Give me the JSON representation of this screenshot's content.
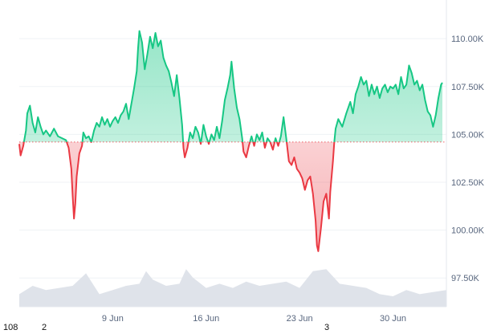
{
  "chart_data": {
    "type": "area",
    "baseline": 104.6,
    "colors": {
      "above": "#16c784",
      "below": "#ea3943",
      "volume": "#dfe3ea",
      "grid": "#eff2f5",
      "baseline": "#ea3943"
    },
    "grid": true,
    "ylim": [
      96.0,
      111.6
    ],
    "y_ticks": [
      {
        "value": 110.0,
        "label": "110.00K"
      },
      {
        "value": 107.5,
        "label": "107.50K"
      },
      {
        "value": 105.0,
        "label": "105.00K"
      },
      {
        "value": 102.5,
        "label": "102.50K"
      },
      {
        "value": 100.0,
        "label": "100.00K"
      },
      {
        "value": 97.5,
        "label": "97.50K"
      }
    ],
    "xlim": [
      2.0,
      34.0
    ],
    "x_ticks": [
      {
        "value": 9.0,
        "label": "9 Jun"
      },
      {
        "value": 16.0,
        "label": "16 Jun"
      },
      {
        "value": 23.0,
        "label": "23 Jun"
      },
      {
        "value": 30.0,
        "label": "30 Jun"
      }
    ],
    "price_points": [
      [
        2.0,
        104.5
      ],
      [
        2.1,
        103.9
      ],
      [
        2.3,
        104.4
      ],
      [
        2.5,
        105.2
      ],
      [
        2.6,
        106.1
      ],
      [
        2.8,
        106.5
      ],
      [
        3.0,
        105.6
      ],
      [
        3.2,
        105.1
      ],
      [
        3.4,
        105.9
      ],
      [
        3.6,
        105.4
      ],
      [
        3.8,
        105.0
      ],
      [
        4.0,
        105.2
      ],
      [
        4.3,
        104.9
      ],
      [
        4.6,
        105.3
      ],
      [
        4.9,
        104.9
      ],
      [
        5.2,
        104.8
      ],
      [
        5.5,
        104.7
      ],
      [
        5.7,
        104.3
      ],
      [
        5.9,
        103.2
      ],
      [
        6.0,
        101.8
      ],
      [
        6.1,
        100.6
      ],
      [
        6.2,
        101.4
      ],
      [
        6.3,
        102.8
      ],
      [
        6.5,
        104.0
      ],
      [
        6.7,
        104.4
      ],
      [
        6.8,
        105.1
      ],
      [
        7.0,
        104.8
      ],
      [
        7.2,
        104.9
      ],
      [
        7.4,
        104.6
      ],
      [
        7.6,
        105.2
      ],
      [
        7.8,
        105.6
      ],
      [
        8.0,
        105.4
      ],
      [
        8.2,
        105.9
      ],
      [
        8.4,
        105.5
      ],
      [
        8.6,
        105.8
      ],
      [
        8.8,
        105.4
      ],
      [
        9.0,
        105.7
      ],
      [
        9.2,
        105.9
      ],
      [
        9.4,
        105.6
      ],
      [
        9.6,
        106.0
      ],
      [
        9.8,
        106.2
      ],
      [
        10.0,
        106.6
      ],
      [
        10.2,
        105.8
      ],
      [
        10.4,
        106.6
      ],
      [
        10.6,
        107.4
      ],
      [
        10.8,
        108.3
      ],
      [
        10.9,
        109.5
      ],
      [
        11.0,
        110.4
      ],
      [
        11.2,
        109.8
      ],
      [
        11.4,
        108.4
      ],
      [
        11.6,
        109.2
      ],
      [
        11.8,
        110.1
      ],
      [
        12.0,
        109.5
      ],
      [
        12.2,
        110.3
      ],
      [
        12.4,
        109.6
      ],
      [
        12.6,
        109.9
      ],
      [
        12.8,
        109.0
      ],
      [
        13.0,
        108.6
      ],
      [
        13.2,
        108.3
      ],
      [
        13.4,
        107.7
      ],
      [
        13.6,
        107.0
      ],
      [
        13.8,
        108.1
      ],
      [
        14.0,
        106.9
      ],
      [
        14.2,
        105.5
      ],
      [
        14.3,
        104.3
      ],
      [
        14.4,
        103.8
      ],
      [
        14.6,
        104.3
      ],
      [
        14.8,
        105.1
      ],
      [
        15.0,
        104.8
      ],
      [
        15.2,
        105.4
      ],
      [
        15.4,
        105.1
      ],
      [
        15.6,
        104.5
      ],
      [
        15.8,
        105.5
      ],
      [
        16.0,
        104.9
      ],
      [
        16.2,
        104.5
      ],
      [
        16.4,
        105.0
      ],
      [
        16.6,
        104.7
      ],
      [
        16.8,
        105.4
      ],
      [
        17.0,
        104.8
      ],
      [
        17.2,
        105.7
      ],
      [
        17.4,
        106.8
      ],
      [
        17.6,
        107.4
      ],
      [
        17.8,
        108.1
      ],
      [
        17.9,
        108.8
      ],
      [
        18.1,
        107.4
      ],
      [
        18.3,
        106.4
      ],
      [
        18.5,
        105.8
      ],
      [
        18.7,
        104.8
      ],
      [
        18.8,
        104.1
      ],
      [
        19.0,
        103.8
      ],
      [
        19.2,
        104.4
      ],
      [
        19.4,
        104.9
      ],
      [
        19.6,
        104.4
      ],
      [
        19.8,
        105.0
      ],
      [
        20.0,
        104.7
      ],
      [
        20.2,
        105.1
      ],
      [
        20.4,
        104.3
      ],
      [
        20.6,
        104.8
      ],
      [
        20.8,
        104.6
      ],
      [
        21.0,
        104.2
      ],
      [
        21.2,
        104.8
      ],
      [
        21.4,
        104.4
      ],
      [
        21.6,
        104.9
      ],
      [
        21.8,
        105.9
      ],
      [
        22.0,
        104.8
      ],
      [
        22.2,
        103.6
      ],
      [
        22.4,
        103.4
      ],
      [
        22.6,
        103.8
      ],
      [
        22.8,
        103.2
      ],
      [
        23.0,
        103.0
      ],
      [
        23.2,
        102.7
      ],
      [
        23.4,
        102.1
      ],
      [
        23.6,
        102.6
      ],
      [
        23.8,
        102.8
      ],
      [
        24.0,
        101.9
      ],
      [
        24.2,
        100.5
      ],
      [
        24.3,
        99.2
      ],
      [
        24.4,
        98.9
      ],
      [
        24.6,
        100.1
      ],
      [
        24.8,
        101.5
      ],
      [
        25.0,
        101.9
      ],
      [
        25.2,
        100.6
      ],
      [
        25.3,
        102.0
      ],
      [
        25.5,
        103.6
      ],
      [
        25.6,
        104.6
      ],
      [
        25.7,
        105.3
      ],
      [
        25.9,
        105.8
      ],
      [
        26.2,
        105.4
      ],
      [
        26.5,
        106.1
      ],
      [
        26.8,
        106.7
      ],
      [
        27.0,
        106.1
      ],
      [
        27.2,
        107.1
      ],
      [
        27.4,
        107.5
      ],
      [
        27.6,
        108.0
      ],
      [
        27.8,
        107.6
      ],
      [
        28.0,
        107.8
      ],
      [
        28.2,
        107.0
      ],
      [
        28.4,
        107.6
      ],
      [
        28.6,
        107.1
      ],
      [
        28.8,
        107.5
      ],
      [
        29.0,
        106.9
      ],
      [
        29.2,
        107.4
      ],
      [
        29.4,
        107.6
      ],
      [
        29.6,
        107.2
      ],
      [
        29.8,
        107.5
      ],
      [
        30.0,
        107.4
      ],
      [
        30.2,
        107.6
      ],
      [
        30.4,
        107.1
      ],
      [
        30.6,
        108.0
      ],
      [
        30.8,
        107.4
      ],
      [
        31.0,
        107.6
      ],
      [
        31.2,
        108.6
      ],
      [
        31.4,
        108.2
      ],
      [
        31.6,
        107.6
      ],
      [
        31.8,
        107.8
      ],
      [
        32.0,
        107.3
      ],
      [
        32.2,
        107.6
      ],
      [
        32.4,
        106.8
      ],
      [
        32.6,
        106.2
      ],
      [
        32.8,
        106.0
      ],
      [
        33.0,
        105.4
      ],
      [
        33.2,
        106.0
      ],
      [
        33.4,
        106.9
      ],
      [
        33.6,
        107.6
      ],
      [
        33.7,
        107.7
      ]
    ],
    "volume_points": [
      [
        2.0,
        0.3
      ],
      [
        3.0,
        0.5
      ],
      [
        4.0,
        0.4
      ],
      [
        5.0,
        0.45
      ],
      [
        6.0,
        0.5
      ],
      [
        7.0,
        0.8
      ],
      [
        8.0,
        0.3
      ],
      [
        9.0,
        0.4
      ],
      [
        10.0,
        0.5
      ],
      [
        11.0,
        0.55
      ],
      [
        11.5,
        0.85
      ],
      [
        12.0,
        0.65
      ],
      [
        13.0,
        0.5
      ],
      [
        14.0,
        0.55
      ],
      [
        14.5,
        0.9
      ],
      [
        15.0,
        0.7
      ],
      [
        16.0,
        0.45
      ],
      [
        17.0,
        0.55
      ],
      [
        18.0,
        0.45
      ],
      [
        19.0,
        0.6
      ],
      [
        20.0,
        0.5
      ],
      [
        21.0,
        0.55
      ],
      [
        22.0,
        0.6
      ],
      [
        23.0,
        0.45
      ],
      [
        24.0,
        0.85
      ],
      [
        25.0,
        0.9
      ],
      [
        26.0,
        0.55
      ],
      [
        27.0,
        0.5
      ],
      [
        28.0,
        0.45
      ],
      [
        29.0,
        0.3
      ],
      [
        30.0,
        0.25
      ],
      [
        31.0,
        0.4
      ],
      [
        32.0,
        0.3
      ],
      [
        33.0,
        0.35
      ],
      [
        34.0,
        0.4
      ]
    ]
  },
  "footer": {
    "a": "108",
    "b": "2",
    "c": "3"
  }
}
